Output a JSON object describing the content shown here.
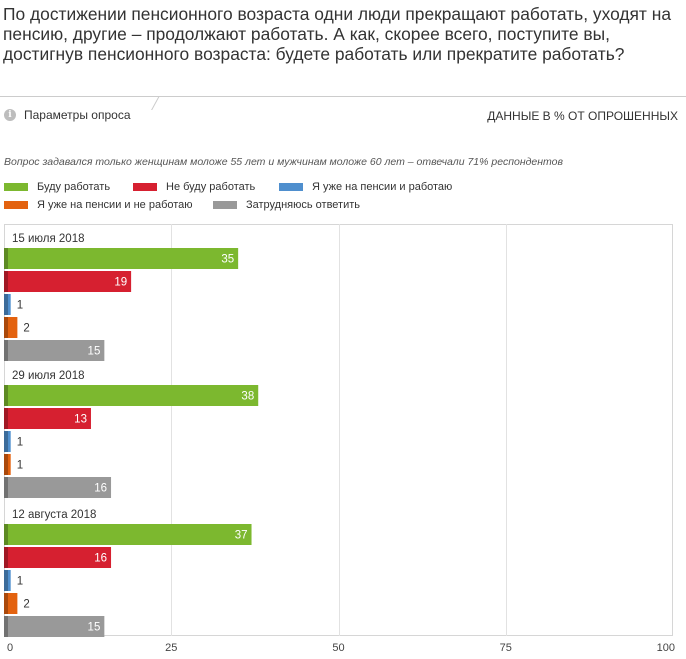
{
  "header": {
    "question": "По достижении пенсионного возраста одни люди прекращают работать, уходят на пенсию, другие – продолжают работать. А как, скорее всего, поступите вы, достигнув пенсионного возраста: будете работать или прекратите работать?",
    "params_label": "Параметры опроса",
    "info_icon": "i",
    "units_label": "ДАННЫЕ В % ОТ ОПРОШЕННЫХ",
    "note": "Вопрос задавался только женщинам моложе 55 лет и мужчинам моложе 60 лет – отвечали 71% респондентов"
  },
  "chart_data": {
    "type": "bar",
    "orientation": "horizontal",
    "xlim": [
      0,
      100
    ],
    "x_ticks": [
      0,
      25,
      50,
      75,
      100
    ],
    "grid": true,
    "legend_position": "top-left",
    "groups": [
      "15 июля 2018",
      "29 июля 2018",
      "12 августа 2018"
    ],
    "series": [
      {
        "name": "Буду работать",
        "color": "#7cb82f",
        "values": [
          35,
          38,
          37
        ]
      },
      {
        "name": "Не буду работать",
        "color": "#d62030",
        "values": [
          19,
          13,
          16
        ]
      },
      {
        "name": "Я уже на пенсии и работаю",
        "color": "#4f8fce",
        "values": [
          1,
          1,
          1
        ]
      },
      {
        "name": "Я уже на пенсии и не работаю",
        "color": "#e3620f",
        "values": [
          2,
          1,
          2
        ]
      },
      {
        "name": "Затрудняюсь ответить",
        "color": "#999999",
        "values": [
          15,
          16,
          15
        ]
      }
    ]
  }
}
